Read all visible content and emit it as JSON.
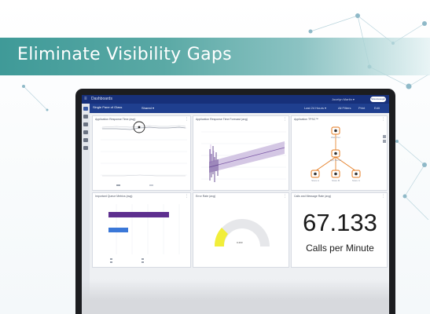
{
  "banner": {
    "title": "Eliminate Visibility Gaps"
  },
  "app": {
    "menu_glyph": "≡",
    "title": "Dashboards",
    "user": "Jocelyn Martin ▾",
    "logo": "ScienceLogic"
  },
  "toolbar": {
    "tab": "Single Pane of Glass",
    "select": "Shared ▾",
    "time_range": "Last 24 Hours ▾",
    "filters": "All Filters",
    "print": "Print",
    "edit": "Edit"
  },
  "panels": {
    "response_time": {
      "title": "Application Response Time (avg)"
    },
    "forecast": {
      "title": "Application Response Time Forecast (avg)"
    },
    "topology": {
      "title": "Application TPSC™",
      "nodes": [
        "Web Tier",
        "App Server",
        "Store A",
        "Store B",
        "Store C"
      ]
    },
    "queue_metrics": {
      "title": "Important Queue Metrics (avg)"
    },
    "error_rate": {
      "title": "Error Rate (avg)",
      "value": "0.403"
    },
    "calls": {
      "title": "Calls and Message Rate (avg)",
      "value": "67.133",
      "caption": "Calls per Minute"
    }
  },
  "colors": {
    "banner": "#3f9a98",
    "topbar": "#17307a",
    "toolbar": "#1f3f8f",
    "topology_orange": "#e57a1e",
    "bar_purple": "#5e2f8f",
    "bar_blue": "#3b78d8",
    "gauge_yellow": "#f1ee3a"
  }
}
